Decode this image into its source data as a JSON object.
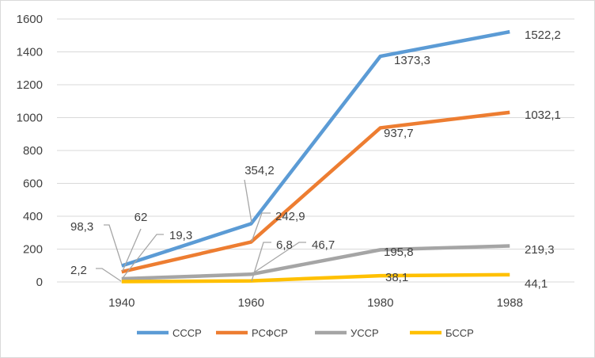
{
  "chart_data": {
    "type": "line",
    "title": "",
    "xlabel": "",
    "ylabel": "",
    "categories": [
      "1940",
      "1960",
      "1980",
      "1988"
    ],
    "ylim": [
      0,
      1600
    ],
    "yticks": [
      "0",
      "200",
      "400",
      "600",
      "800",
      "1000",
      "1200",
      "1400",
      "1600"
    ],
    "grid": true,
    "legend_position": "bottom",
    "series": [
      {
        "name": "СССР",
        "color": "#5b9bd5",
        "values": [
          98.3,
          354.2,
          1373.3,
          1522.2
        ],
        "labels": [
          "98,3",
          "354,2",
          "1373,3",
          "1522,2"
        ]
      },
      {
        "name": "РСФСР",
        "color": "#ed7d31",
        "values": [
          62,
          242.9,
          937.7,
          1032.1
        ],
        "labels": [
          "62",
          "242,9",
          "937,7",
          "1032,1"
        ]
      },
      {
        "name": "УССР",
        "color": "#a5a5a5",
        "values": [
          19.3,
          46.7,
          195.8,
          219.3
        ],
        "labels": [
          "19,3",
          "46,7",
          "195,8",
          "219,3"
        ]
      },
      {
        "name": "БССР",
        "color": "#ffc000",
        "values": [
          2.2,
          6.8,
          38.1,
          44.1
        ],
        "labels": [
          "2,2",
          "6,8",
          "38,1",
          "44,1"
        ]
      }
    ]
  }
}
